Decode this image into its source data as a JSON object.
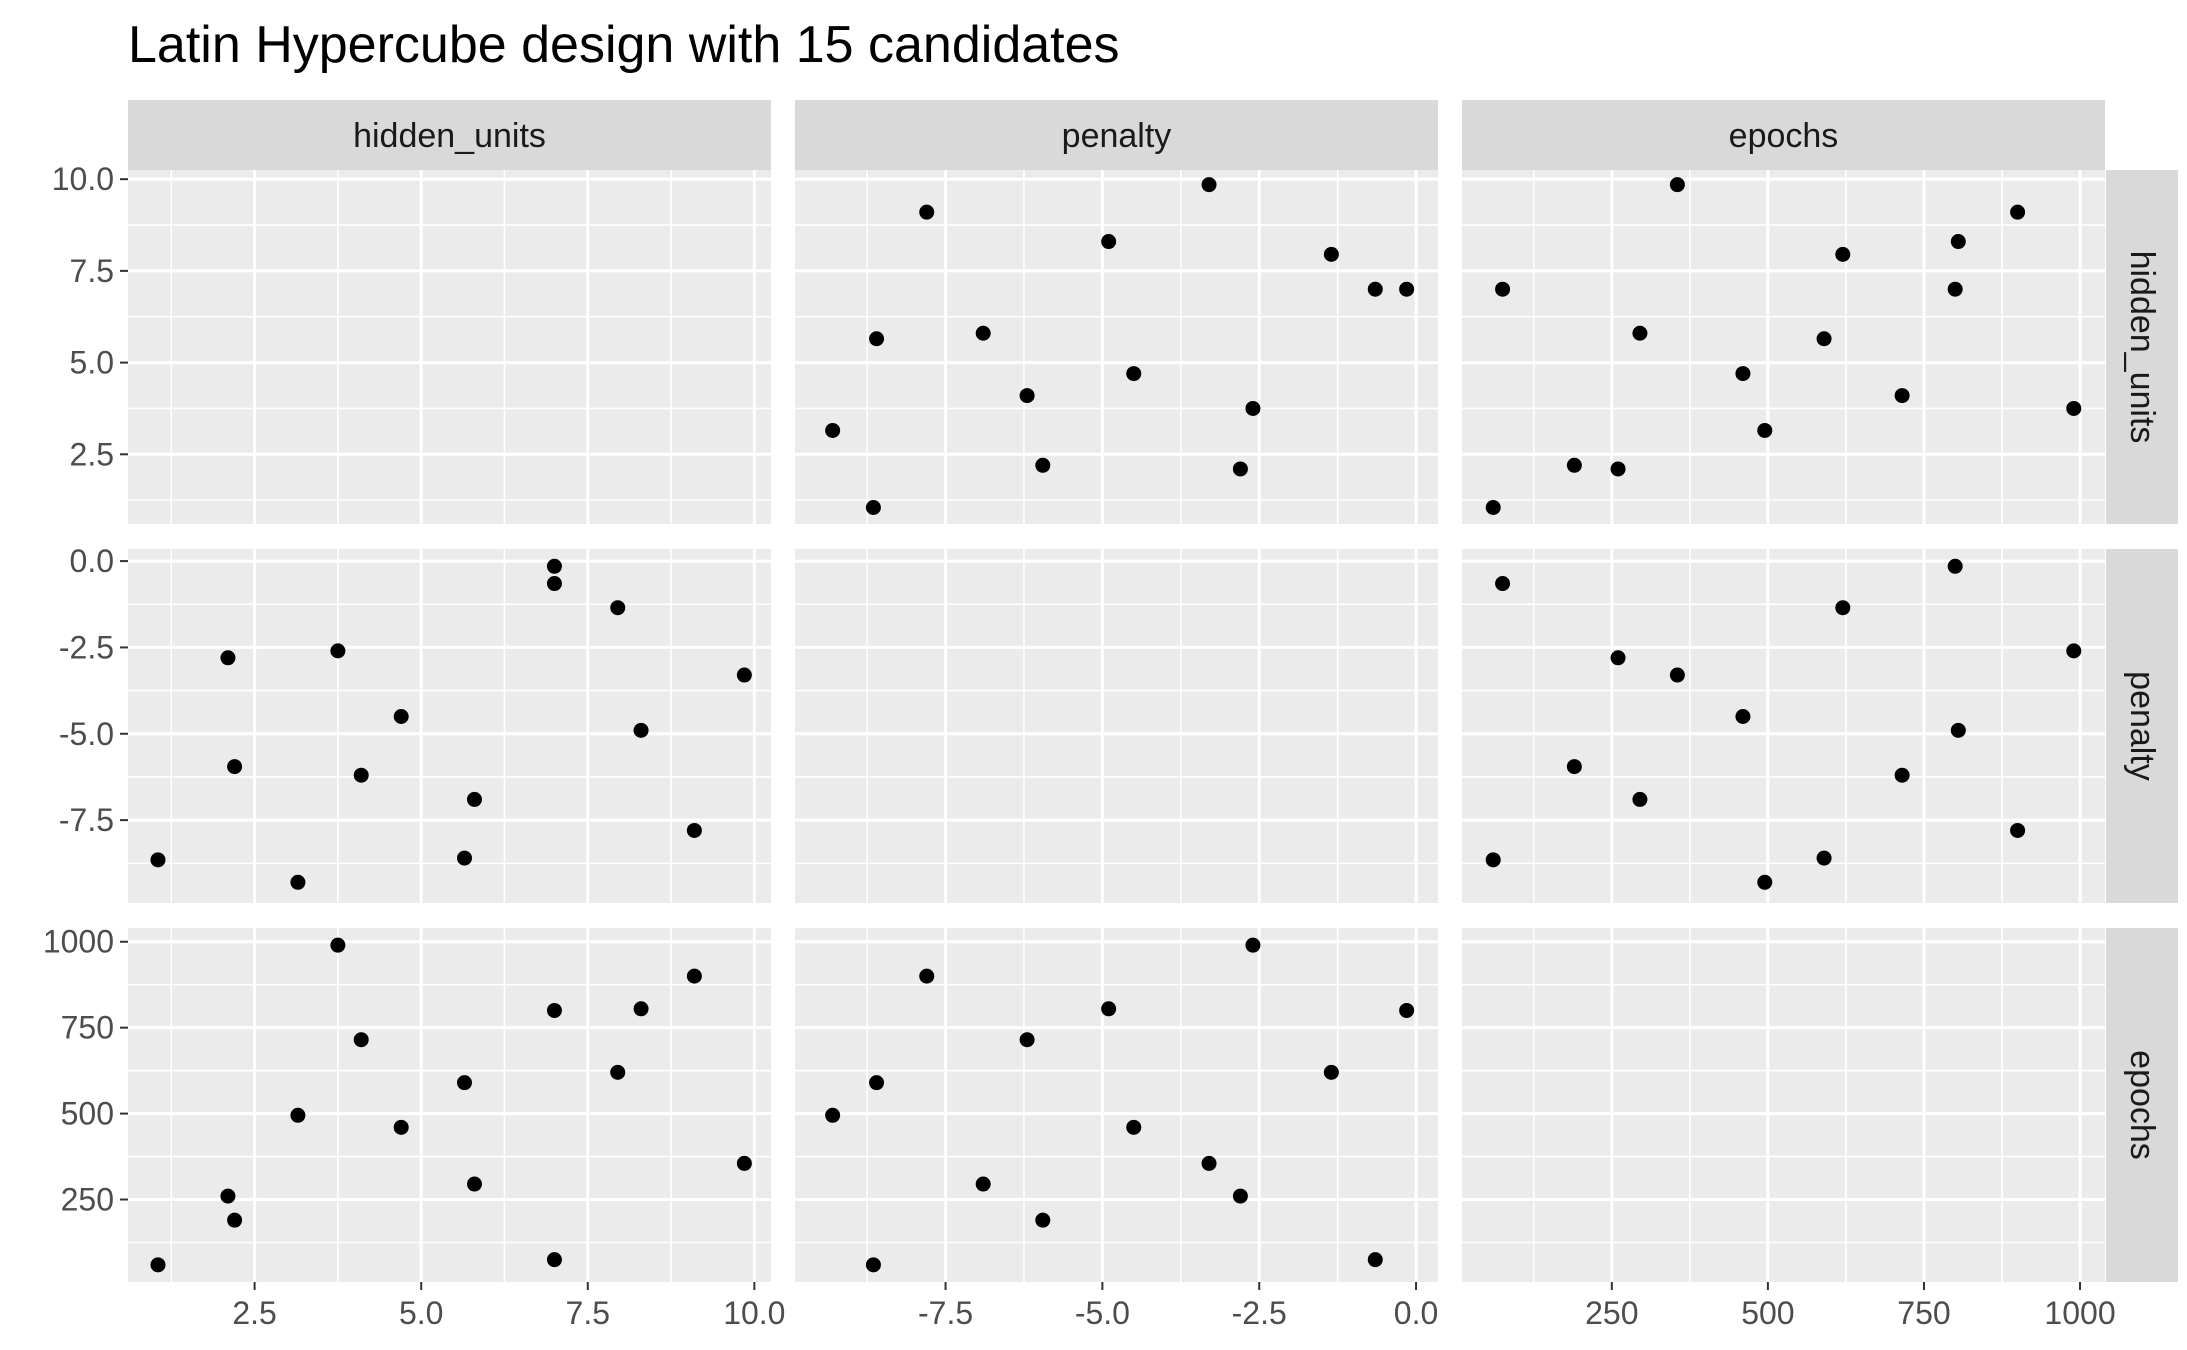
{
  "chart_data": {
    "type": "scatter",
    "title": "Latin Hypercube design with 15 candidates",
    "variables": [
      "hidden_units",
      "penalty",
      "epochs"
    ],
    "axes": {
      "hidden_units": {
        "range": [
          0.6,
          10.25
        ],
        "ticks": [
          2.5,
          5.0,
          7.5,
          10.0
        ],
        "tick_labels": [
          "2.5",
          "5.0",
          "7.5",
          "10.0"
        ]
      },
      "penalty": {
        "range": [
          -9.9,
          0.35
        ],
        "ticks": [
          -7.5,
          -5.0,
          -2.5,
          0.0
        ],
        "tick_labels": [
          "-7.5",
          "-5.0",
          "-2.5",
          "0.0"
        ]
      },
      "epochs": {
        "range": [
          10,
          1040
        ],
        "ticks": [
          250,
          500,
          750,
          1000
        ],
        "tick_labels": [
          "250",
          "500",
          "750",
          "1000"
        ]
      }
    },
    "grid": true,
    "legend": "none",
    "point_color": "#000000",
    "points": [
      {
        "hidden_units": 1.05,
        "penalty": -8.65,
        "epochs": 60
      },
      {
        "hidden_units": 2.1,
        "penalty": -2.8,
        "epochs": 260
      },
      {
        "hidden_units": 2.2,
        "penalty": -5.95,
        "epochs": 190
      },
      {
        "hidden_units": 3.15,
        "penalty": -9.3,
        "epochs": 495
      },
      {
        "hidden_units": 3.75,
        "penalty": -2.6,
        "epochs": 990
      },
      {
        "hidden_units": 4.1,
        "penalty": -6.2,
        "epochs": 715
      },
      {
        "hidden_units": 4.7,
        "penalty": -4.5,
        "epochs": 460
      },
      {
        "hidden_units": 5.65,
        "penalty": -8.6,
        "epochs": 590
      },
      {
        "hidden_units": 5.8,
        "penalty": -6.9,
        "epochs": 295
      },
      {
        "hidden_units": 7.0,
        "penalty": -0.65,
        "epochs": 75
      },
      {
        "hidden_units": 7.0,
        "penalty": -0.15,
        "epochs": 800
      },
      {
        "hidden_units": 7.95,
        "penalty": -1.35,
        "epochs": 620
      },
      {
        "hidden_units": 8.3,
        "penalty": -4.9,
        "epochs": 805
      },
      {
        "hidden_units": 9.1,
        "penalty": -7.8,
        "epochs": 900
      },
      {
        "hidden_units": 9.85,
        "penalty": -3.3,
        "epochs": 355
      }
    ]
  }
}
